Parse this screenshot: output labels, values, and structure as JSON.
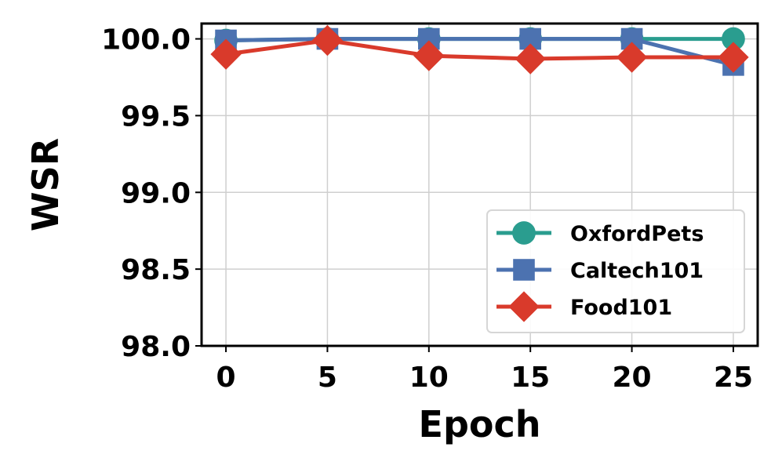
{
  "chart_data": {
    "type": "line",
    "xlabel": "Epoch",
    "ylabel": "WSR",
    "x": [
      0,
      5,
      10,
      15,
      20,
      25
    ],
    "xticks": [
      "0",
      "5",
      "10",
      "15",
      "20",
      "25"
    ],
    "xlim": [
      -1.2,
      26.2
    ],
    "ylim": [
      98.0,
      100.1
    ],
    "yticks": [
      "98.0",
      "98.5",
      "99.0",
      "99.5",
      "100.0"
    ],
    "yticks_values": [
      98.0,
      98.5,
      99.0,
      99.5,
      100.0
    ],
    "grid": true,
    "legend_position": "lower-right",
    "series": [
      {
        "name": "OxfordPets",
        "color": "#2a9d8f",
        "marker": "circle",
        "values": [
          99.99,
          100.0,
          100.0,
          100.0,
          100.0,
          100.0
        ]
      },
      {
        "name": "Caltech101",
        "color": "#4c72b0",
        "marker": "square",
        "values": [
          99.99,
          100.0,
          100.0,
          100.0,
          100.0,
          99.83
        ]
      },
      {
        "name": "Food101",
        "color": "#d93a2b",
        "marker": "diamond",
        "values": [
          99.9,
          99.99,
          99.89,
          99.87,
          99.88,
          99.88
        ]
      }
    ]
  }
}
